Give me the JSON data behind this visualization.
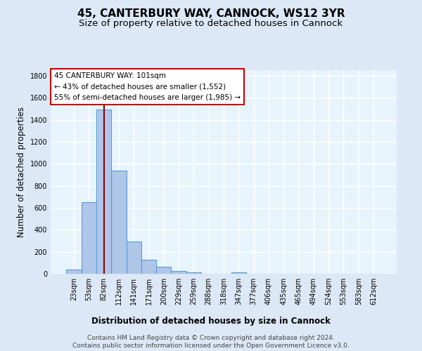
{
  "title": "45, CANTERBURY WAY, CANNOCK, WS12 3YR",
  "subtitle": "Size of property relative to detached houses in Cannock",
  "xlabel": "Distribution of detached houses by size in Cannock",
  "ylabel": "Number of detached properties",
  "footnote1": "Contains HM Land Registry data © Crown copyright and database right 2024.",
  "footnote2": "Contains public sector information licensed under the Open Government Licence v3.0.",
  "bin_labels": [
    "23sqm",
    "53sqm",
    "82sqm",
    "112sqm",
    "141sqm",
    "171sqm",
    "200sqm",
    "229sqm",
    "259sqm",
    "288sqm",
    "318sqm",
    "347sqm",
    "377sqm",
    "406sqm",
    "435sqm",
    "465sqm",
    "494sqm",
    "524sqm",
    "553sqm",
    "583sqm",
    "612sqm"
  ],
  "bar_heights": [
    40,
    650,
    1490,
    940,
    295,
    130,
    65,
    25,
    15,
    0,
    0,
    15,
    0,
    0,
    0,
    0,
    0,
    0,
    0,
    0,
    0
  ],
  "bar_color": "#aec6e8",
  "bar_edge_color": "#5b9bd5",
  "bar_edge_width": 0.8,
  "ylim": [
    0,
    1850
  ],
  "yticks": [
    0,
    200,
    400,
    600,
    800,
    1000,
    1200,
    1400,
    1600,
    1800
  ],
  "vline_x": 2,
  "vline_color": "#8b0000",
  "annotation_box_text": "45 CANTERBURY WAY: 101sqm\n← 43% of detached houses are smaller (1,552)\n55% of semi-detached houses are larger (1,985) →",
  "annotation_box_color": "#ffffff",
  "annotation_box_edge_color": "#cc0000",
  "background_color": "#dce8f5",
  "plot_bg_color": "#e8f4fb",
  "grid_color": "#ffffff",
  "title_fontsize": 11,
  "subtitle_fontsize": 9.5,
  "axis_label_fontsize": 8.5,
  "tick_label_fontsize": 7,
  "annotation_fontsize": 7.5,
  "footnote_fontsize": 6.5
}
